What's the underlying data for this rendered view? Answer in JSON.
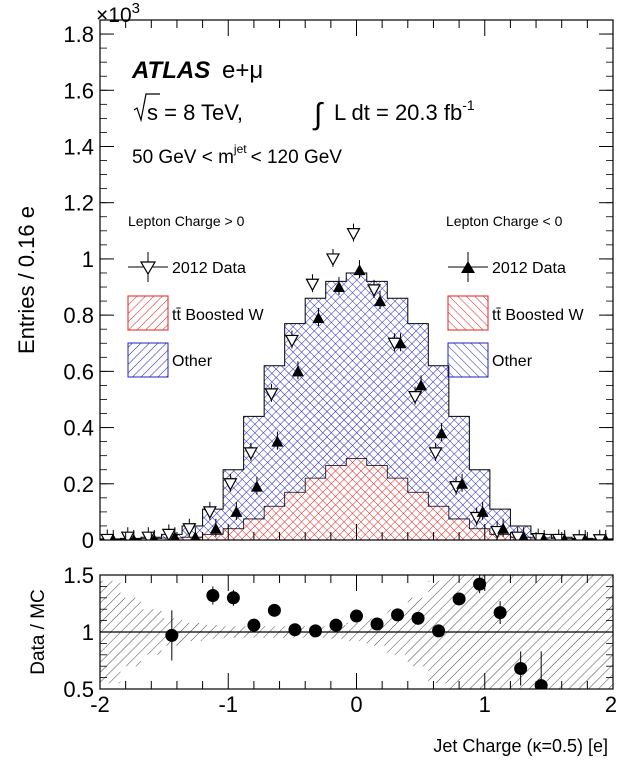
{
  "chart_data": [
    {
      "type": "histogram",
      "panel": "main",
      "multiplier": "×10",
      "multiplier_exp": "3",
      "ylabel": "Entries / 0.16 e",
      "ylim": [
        0,
        1.85
      ],
      "xlim": [
        -2,
        2
      ],
      "yticks": [
        "0",
        "0.2",
        "0.4",
        "0.6",
        "0.8",
        "1",
        "1.2",
        "1.4",
        "1.6",
        "1.8"
      ],
      "experiment": "ATLAS",
      "channel": "e+μ",
      "energy_label": "s = 8 TeV,",
      "lumi_label": "L dt = 20.3 fb",
      "lumi_exp": "-1",
      "mass_cut_left": "50 GeV < m",
      "mass_cut_sup": "jet",
      "mass_cut_right": "< 120 GeV",
      "bin_edges": [
        -2.0,
        -1.84,
        -1.68,
        -1.52,
        -1.36,
        -1.2,
        -1.04,
        -0.88,
        -0.72,
        -0.56,
        -0.4,
        -0.24,
        -0.08,
        0.08,
        0.24,
        0.4,
        0.56,
        0.72,
        0.88,
        1.04,
        1.2,
        1.36,
        1.52,
        1.68,
        1.84,
        2.0
      ],
      "positive_lepton": {
        "legend_title": "Lepton Charge > 0",
        "data_label": "2012 Data",
        "ttbar_label": "tt̄ Boosted W",
        "other_label": "Other",
        "ttbar": [
          0.002,
          0.003,
          0.005,
          0.007,
          0.01,
          0.02,
          0.04,
          0.075,
          0.12,
          0.17,
          0.22,
          0.265,
          0.29,
          0.265,
          0.22,
          0.17,
          0.12,
          0.075,
          0.04,
          0.02,
          0.01,
          0.007,
          0.005,
          0.003,
          0.002
        ],
        "total": [
          0.004,
          0.006,
          0.01,
          0.02,
          0.05,
          0.11,
          0.25,
          0.44,
          0.62,
          0.77,
          0.86,
          0.92,
          0.95,
          0.92,
          0.86,
          0.77,
          0.62,
          0.44,
          0.25,
          0.11,
          0.05,
          0.02,
          0.01,
          0.006,
          0.004
        ],
        "data": [
          0.002,
          0.01,
          0.01,
          0.02,
          0.04,
          0.1,
          0.2,
          0.31,
          0.52,
          0.71,
          0.91,
          1.0,
          1.09,
          0.89,
          0.7,
          0.51,
          0.31,
          0.19,
          0.08,
          0.03,
          0.01,
          0.005,
          0.002,
          0.001,
          0.001
        ]
      },
      "negative_lepton": {
        "legend_title": "Lepton Charge < 0",
        "data_label": "2012 Data",
        "ttbar_label": "tt̄ Boosted W",
        "other_label": "Other",
        "ttbar": [
          0.002,
          0.003,
          0.005,
          0.007,
          0.01,
          0.02,
          0.04,
          0.075,
          0.12,
          0.17,
          0.22,
          0.265,
          0.29,
          0.265,
          0.22,
          0.17,
          0.12,
          0.075,
          0.04,
          0.02,
          0.01,
          0.007,
          0.005,
          0.003,
          0.002
        ],
        "total": [
          0.004,
          0.006,
          0.01,
          0.02,
          0.05,
          0.11,
          0.25,
          0.44,
          0.62,
          0.77,
          0.86,
          0.92,
          0.95,
          0.92,
          0.86,
          0.77,
          0.62,
          0.44,
          0.25,
          0.11,
          0.05,
          0.02,
          0.01,
          0.006,
          0.004
        ],
        "data": [
          0.0,
          0.0,
          0.0,
          0.01,
          0.01,
          0.04,
          0.1,
          0.19,
          0.35,
          0.6,
          0.79,
          0.9,
          0.96,
          0.85,
          0.7,
          0.55,
          0.38,
          0.2,
          0.1,
          0.04,
          0.01,
          0.0,
          0.0,
          0.0,
          0.0
        ]
      },
      "colors": {
        "ttbar": "#e02020",
        "other": "#2020c0",
        "data": "#000000"
      }
    },
    {
      "type": "scatter",
      "panel": "ratio",
      "xlabel": "Jet Charge (κ=0.5) [e]",
      "ylabel": "Data / MC",
      "xlim": [
        -2,
        2
      ],
      "ylim": [
        0.5,
        1.5
      ],
      "yticks": [
        "0.5",
        "1",
        "1.5"
      ],
      "xticks": [
        "-2",
        "-1",
        "0",
        "1",
        "2"
      ],
      "x": [
        -1.44,
        -1.12,
        -0.96,
        -0.8,
        -0.64,
        -0.48,
        -0.32,
        -0.16,
        0.0,
        0.16,
        0.32,
        0.48,
        0.64,
        0.8,
        0.96,
        1.12,
        1.28,
        1.44
      ],
      "y": [
        0.97,
        1.32,
        1.3,
        1.06,
        1.19,
        1.02,
        1.01,
        1.06,
        1.14,
        1.07,
        1.15,
        1.12,
        1.01,
        1.29,
        1.42,
        1.17,
        0.68,
        0.53
      ],
      "yerr": [
        0.22,
        0.08,
        0.07,
        0.03,
        0.03,
        0.02,
        0.02,
        0.02,
        0.02,
        0.02,
        0.02,
        0.02,
        0.02,
        0.05,
        0.08,
        0.1,
        0.15,
        0.3
      ],
      "band_err": [
        0.45,
        0.3,
        0.2,
        0.12,
        0.08,
        0.06,
        0.05,
        0.05,
        0.05,
        0.05,
        0.05,
        0.06,
        0.08,
        0.12,
        0.2,
        0.3,
        0.45,
        0.5,
        0.5,
        0.5,
        0.5,
        0.5,
        0.5,
        0.5,
        0.5
      ]
    }
  ]
}
